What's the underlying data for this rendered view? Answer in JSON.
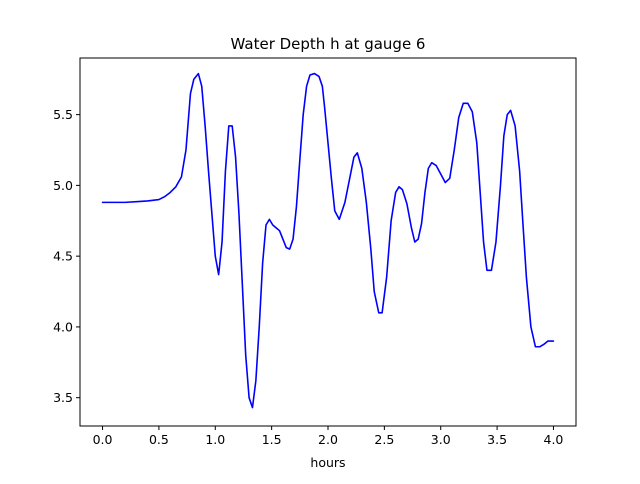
{
  "chart_data": {
    "type": "line",
    "title": "Water Depth h at gauge 6",
    "xlabel": "hours",
    "ylabel": "",
    "xlim": [
      -0.2,
      4.2
    ],
    "ylim": [
      3.3,
      5.9
    ],
    "xticks": [
      0.0,
      0.5,
      1.0,
      1.5,
      2.0,
      2.5,
      3.0,
      3.5,
      4.0
    ],
    "xtick_labels": [
      "0.0",
      "0.5",
      "1.0",
      "1.5",
      "2.0",
      "2.5",
      "3.0",
      "3.5",
      "4.0"
    ],
    "yticks": [
      3.5,
      4.0,
      4.5,
      5.0,
      5.5
    ],
    "ytick_labels": [
      "3.5",
      "4.0",
      "4.5",
      "5.0",
      "5.5"
    ],
    "grid": false,
    "series": [
      {
        "color": "#0000ff",
        "x": [
          0.0,
          0.1,
          0.2,
          0.3,
          0.4,
          0.5,
          0.55,
          0.6,
          0.65,
          0.7,
          0.74,
          0.78,
          0.81,
          0.85,
          0.88,
          0.91,
          0.94,
          0.97,
          1.0,
          1.03,
          1.06,
          1.09,
          1.12,
          1.15,
          1.18,
          1.21,
          1.24,
          1.27,
          1.3,
          1.33,
          1.36,
          1.39,
          1.42,
          1.45,
          1.48,
          1.51,
          1.54,
          1.57,
          1.6,
          1.63,
          1.66,
          1.69,
          1.72,
          1.75,
          1.78,
          1.81,
          1.84,
          1.88,
          1.92,
          1.95,
          1.97,
          2.0,
          2.03,
          2.06,
          2.1,
          2.15,
          2.2,
          2.23,
          2.26,
          2.3,
          2.34,
          2.38,
          2.41,
          2.45,
          2.48,
          2.52,
          2.56,
          2.6,
          2.63,
          2.66,
          2.7,
          2.74,
          2.77,
          2.8,
          2.83,
          2.86,
          2.89,
          2.92,
          2.96,
          3.0,
          3.04,
          3.08,
          3.12,
          3.16,
          3.2,
          3.24,
          3.28,
          3.32,
          3.35,
          3.38,
          3.41,
          3.45,
          3.49,
          3.53,
          3.56,
          3.59,
          3.62,
          3.66,
          3.7,
          3.73,
          3.76,
          3.8,
          3.84,
          3.88,
          3.92,
          3.95,
          3.97,
          4.0
        ],
        "y": [
          4.88,
          4.88,
          4.88,
          4.885,
          4.89,
          4.9,
          4.92,
          4.95,
          4.99,
          5.06,
          5.25,
          5.65,
          5.75,
          5.79,
          5.7,
          5.42,
          5.1,
          4.8,
          4.5,
          4.37,
          4.6,
          5.1,
          5.42,
          5.42,
          5.2,
          4.8,
          4.3,
          3.8,
          3.5,
          3.43,
          3.62,
          4.0,
          4.45,
          4.72,
          4.76,
          4.72,
          4.7,
          4.68,
          4.62,
          4.56,
          4.55,
          4.62,
          4.85,
          5.18,
          5.5,
          5.7,
          5.78,
          5.79,
          5.77,
          5.7,
          5.55,
          5.3,
          5.05,
          4.82,
          4.76,
          4.88,
          5.08,
          5.2,
          5.23,
          5.12,
          4.88,
          4.55,
          4.25,
          4.1,
          4.1,
          4.35,
          4.75,
          4.95,
          4.99,
          4.97,
          4.87,
          4.7,
          4.6,
          4.62,
          4.73,
          4.95,
          5.12,
          5.16,
          5.14,
          5.08,
          5.02,
          5.05,
          5.25,
          5.48,
          5.58,
          5.58,
          5.52,
          5.3,
          4.95,
          4.6,
          4.4,
          4.4,
          4.6,
          5.0,
          5.35,
          5.5,
          5.53,
          5.42,
          5.1,
          4.72,
          4.35,
          4.0,
          3.86,
          3.86,
          3.88,
          3.9,
          3.9,
          3.9
        ]
      }
    ]
  }
}
